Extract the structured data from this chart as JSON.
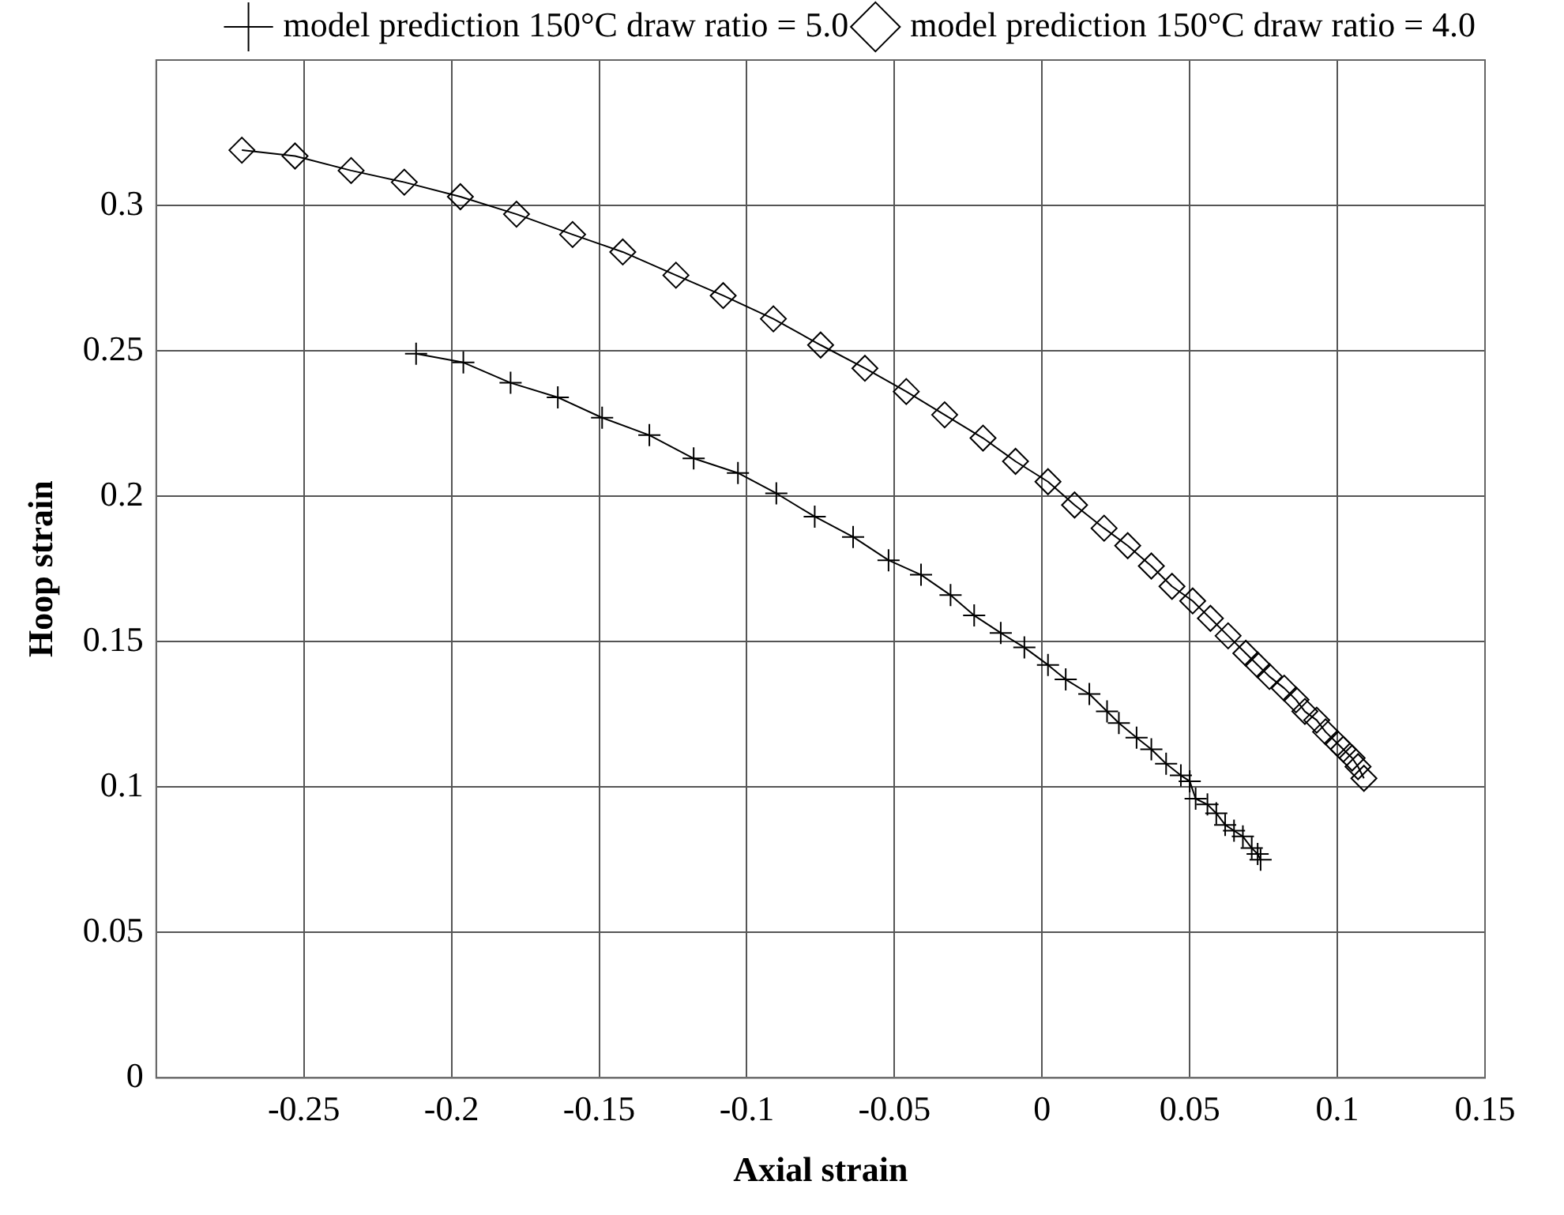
{
  "chart_data": {
    "type": "line",
    "xlabel": "Axial strain",
    "ylabel": "Hoop strain",
    "xlim": [
      -0.3,
      0.15
    ],
    "xticks": [
      -0.25,
      -0.2,
      -0.15,
      -0.1,
      -0.05,
      0,
      0.05,
      0.1,
      0.15
    ],
    "ylim": [
      0,
      0.35
    ],
    "yticks": [
      0,
      0.05,
      0.1,
      0.15,
      0.2,
      0.25,
      0.3
    ],
    "grid": true,
    "legend": "top right",
    "line_style": "solid",
    "series": [
      {
        "name": "model prediction 150°C draw ratio = 5.0",
        "color": "#000000",
        "marker": "cross",
        "x": [
          -0.212,
          -0.196,
          -0.18,
          -0.164,
          -0.149,
          -0.133,
          -0.118,
          -0.103,
          -0.09,
          -0.077,
          -0.064,
          -0.052,
          -0.041,
          -0.031,
          -0.023,
          -0.014,
          -0.006,
          0.002,
          0.008,
          0.016,
          0.022,
          0.026,
          0.032,
          0.037,
          0.042,
          0.047,
          0.05,
          0.052,
          0.056,
          0.059,
          0.062,
          0.065,
          0.068,
          0.071,
          0.073,
          0.074
        ],
        "values": [
          0.249,
          0.246,
          0.239,
          0.234,
          0.227,
          0.221,
          0.213,
          0.208,
          0.201,
          0.193,
          0.186,
          0.178,
          0.173,
          0.166,
          0.159,
          0.153,
          0.148,
          0.142,
          0.137,
          0.132,
          0.126,
          0.122,
          0.117,
          0.113,
          0.108,
          0.104,
          0.102,
          0.096,
          0.094,
          0.091,
          0.087,
          0.085,
          0.083,
          0.079,
          0.077,
          0.075
        ]
      },
      {
        "name": "model prediction 150°C draw ratio = 4.0",
        "color": "#000000",
        "marker": "diamond",
        "x": [
          -0.271,
          -0.253,
          -0.234,
          -0.216,
          -0.197,
          -0.178,
          -0.159,
          -0.142,
          -0.124,
          -0.108,
          -0.091,
          -0.075,
          -0.06,
          -0.046,
          -0.033,
          -0.02,
          -0.009,
          0.002,
          0.011,
          0.021,
          0.029,
          0.037,
          0.044,
          0.051,
          0.057,
          0.063,
          0.069,
          0.073,
          0.077,
          0.082,
          0.086,
          0.089,
          0.093,
          0.096,
          0.1,
          0.102,
          0.105,
          0.107,
          0.109
        ],
        "values": [
          0.319,
          0.317,
          0.312,
          0.308,
          0.303,
          0.297,
          0.29,
          0.284,
          0.276,
          0.269,
          0.261,
          0.252,
          0.244,
          0.236,
          0.228,
          0.22,
          0.212,
          0.205,
          0.197,
          0.189,
          0.183,
          0.176,
          0.169,
          0.164,
          0.158,
          0.152,
          0.146,
          0.142,
          0.138,
          0.134,
          0.13,
          0.126,
          0.123,
          0.119,
          0.115,
          0.113,
          0.11,
          0.107,
          0.103
        ]
      }
    ]
  }
}
